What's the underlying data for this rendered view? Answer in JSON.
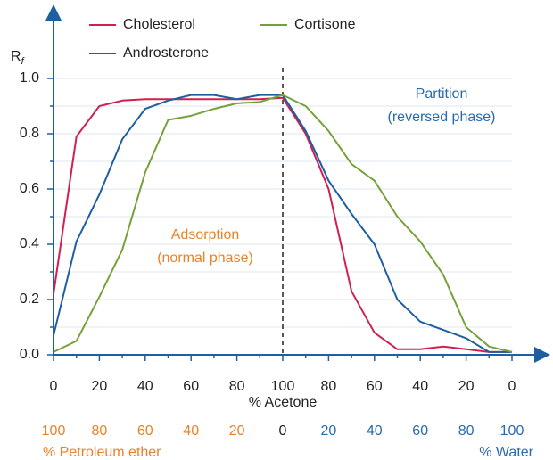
{
  "chart_data": {
    "type": "line",
    "y_label": "R",
    "y_label_subscript": "f",
    "x_label": "% Acetone",
    "solvent_labels": [
      {
        "label": "% Petroleum ether",
        "color": "#e8822a"
      },
      {
        "label": "% Water",
        "color": "#2a6aad"
      }
    ],
    "x": [
      0,
      10,
      20,
      30,
      40,
      50,
      60,
      70,
      80,
      90,
      100,
      110,
      120,
      130,
      140,
      150,
      160,
      170,
      180,
      190,
      200
    ],
    "series": [
      {
        "name": "Cholesterol",
        "color": "#d0204f",
        "values": [
          0.22,
          0.79,
          0.9,
          0.92,
          0.925,
          0.925,
          0.925,
          0.925,
          0.925,
          0.925,
          0.93,
          0.8,
          0.6,
          0.23,
          0.08,
          0.02,
          0.02,
          0.03,
          0.02,
          0.01,
          0.01
        ]
      },
      {
        "name": "Androsterone",
        "color": "#1f5fa0",
        "values": [
          0.07,
          0.41,
          0.58,
          0.78,
          0.89,
          0.92,
          0.94,
          0.94,
          0.925,
          0.94,
          0.94,
          0.81,
          0.63,
          0.51,
          0.4,
          0.2,
          0.12,
          0.09,
          0.06,
          0.01,
          0.01
        ]
      },
      {
        "name": "Cortisone",
        "color": "#76a13a",
        "values": [
          0.01,
          0.05,
          0.21,
          0.38,
          0.66,
          0.85,
          0.865,
          0.89,
          0.91,
          0.915,
          0.94,
          0.9,
          0.81,
          0.69,
          0.63,
          0.5,
          0.41,
          0.29,
          0.1,
          0.03,
          0.01
        ]
      }
    ],
    "xlim": [
      0,
      200
    ],
    "xticks": [
      0,
      20,
      40,
      60,
      80,
      100,
      {
        "value": 120,
        "label": "80"
      },
      {
        "value": 140,
        "label": "60"
      },
      {
        "value": 160,
        "label": "40"
      },
      {
        "value": 180,
        "label": "20"
      },
      {
        "value": 200,
        "label": "0"
      }
    ],
    "xminorticks": [
      10,
      30,
      50,
      70,
      90,
      110,
      130,
      150,
      170,
      190
    ],
    "solvent_ticks": [
      {
        "value": 0,
        "label": "100",
        "color": "#e8822a"
      },
      {
        "value": 20,
        "label": "80",
        "color": "#e8822a"
      },
      {
        "value": 40,
        "label": "60",
        "color": "#e8822a"
      },
      {
        "value": 60,
        "label": "40",
        "color": "#e8822a"
      },
      {
        "value": 80,
        "label": "20",
        "color": "#e8822a"
      },
      {
        "value": 100,
        "label": "0",
        "color": "#222222"
      },
      {
        "value": 120,
        "label": "20",
        "color": "#2a6aad"
      },
      {
        "value": 140,
        "label": "40",
        "color": "#2a6aad"
      },
      {
        "value": 160,
        "label": "60",
        "color": "#2a6aad"
      },
      {
        "value": 180,
        "label": "80",
        "color": "#2a6aad"
      },
      {
        "value": 200,
        "label": "100",
        "color": "#2a6aad"
      }
    ],
    "ylim": [
      0,
      1
    ],
    "yticks": [
      {
        "value": 0,
        "label": "0.0"
      },
      {
        "value": 0.2,
        "label": "0.2"
      },
      {
        "value": 0.4,
        "label": "0.4"
      },
      {
        "value": 0.6,
        "label": "0.6"
      },
      {
        "value": 0.8,
        "label": "0.8"
      },
      {
        "value": 1,
        "label": "1.0"
      }
    ],
    "yminorticks": [
      0.1,
      0.3,
      0.5,
      0.7,
      0.9
    ],
    "grid": true,
    "divider_x": 100,
    "annotations": [
      {
        "lines": [
          "Adsorption",
          "(normal phase)"
        ],
        "color": "#e8822a"
      },
      {
        "lines": [
          "Partition",
          "(reversed phase)"
        ],
        "color": "#2a6aad"
      }
    ]
  }
}
